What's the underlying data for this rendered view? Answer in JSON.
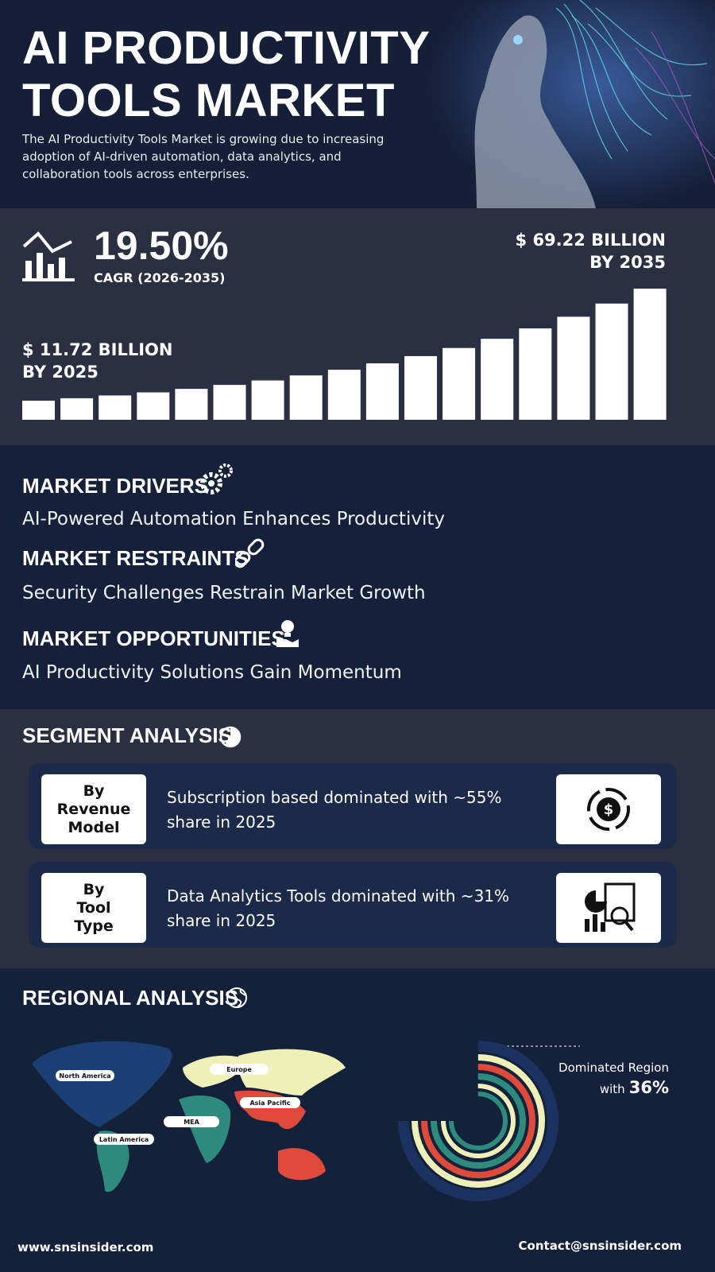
{
  "header": {
    "title_line1": "AI PRODUCTIVITY",
    "title_line2": "TOOLS MARKET",
    "description": "The AI Productivity Tools Market is growing due to increasing adoption of AI-driven automation, data analytics, and collaboration tools across enterprises."
  },
  "stats": {
    "cagr": "19.50%",
    "cagr_label": "CAGR (2026-2035)",
    "end_value": "$ 69.22 BILLION",
    "end_year": "BY 2035",
    "start_value": "$ 11.72 BILLION",
    "start_year": "BY 2025"
  },
  "dynamics": [
    {
      "heading": "MARKET DRIVERS",
      "text": "AI-Powered Automation Enhances Productivity"
    },
    {
      "heading": "MARKET RESTRAINTS",
      "text": "Security Challenges Restrain Market Growth"
    },
    {
      "heading": "MARKET OPPORTUNITIES",
      "text": "AI Productivity Solutions Gain Momentum"
    }
  ],
  "segment": {
    "title": "SEGMENT ANALYSIS",
    "items": [
      {
        "label_lines": [
          "By",
          "Revenue",
          "Model"
        ],
        "text": "Subscription based dominated with ~55% share in 2025"
      },
      {
        "label_lines": [
          "By",
          "Tool",
          "Type"
        ],
        "text": "Data Analytics Tools dominated with ~31% share in 2025"
      }
    ]
  },
  "regional": {
    "title": "REGIONAL ANALYSIS",
    "regions": [
      "North America",
      "Europe",
      "Asia Pacific",
      "MEA",
      "Latin America"
    ],
    "dominated_label": "Dominated Region",
    "with_label": "with",
    "share": "36%"
  },
  "footer": {
    "website": "www.snsinsider.com",
    "contact": "Contact@snsinsider.com"
  }
}
